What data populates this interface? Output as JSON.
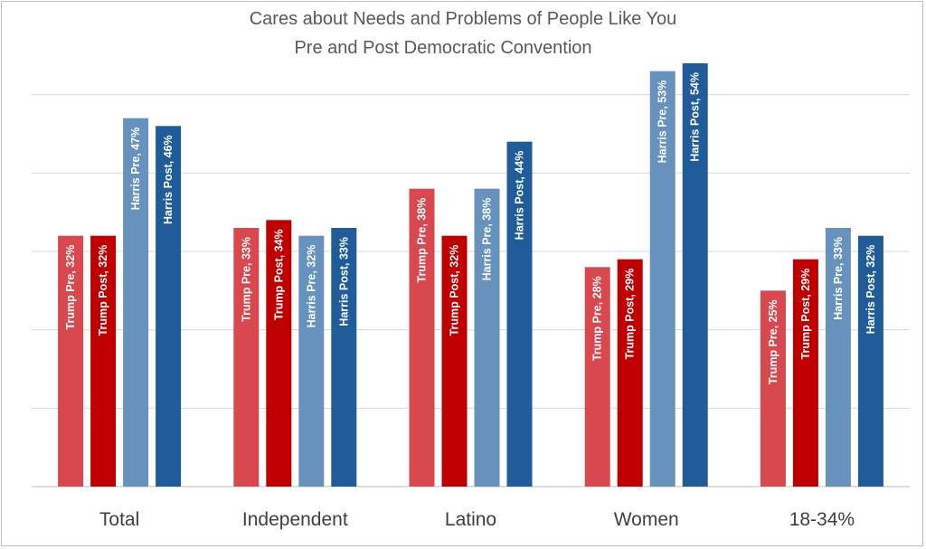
{
  "chart_data": {
    "type": "bar",
    "title": "Cares about Needs and Problems of People Like You",
    "subtitle": "Pre and Post Democratic Convention",
    "xlabel": "",
    "ylabel": "",
    "ylim": [
      0,
      60
    ],
    "grid": true,
    "legend": "none",
    "categories": [
      "Total",
      "Independent",
      "Latino",
      "Women",
      "18-34%"
    ],
    "series": [
      {
        "name": "Trump Pre",
        "color": "#d9474f",
        "values": [
          32,
          33,
          38,
          28,
          25
        ]
      },
      {
        "name": "Trump Post",
        "color": "#c00000",
        "values": [
          32,
          34,
          32,
          29,
          29
        ]
      },
      {
        "name": "Harris Pre",
        "color": "#6792bd",
        "values": [
          47,
          32,
          38,
          53,
          33
        ]
      },
      {
        "name": "Harris Post",
        "color": "#1f5c99",
        "values": [
          46,
          33,
          44,
          54,
          32
        ]
      }
    ],
    "data_labels": [
      [
        "Trump Pre, 32%",
        "Trump Pre, 33%",
        "Trump Pre, 38%",
        "Trump Pre, 28%",
        "Trump Pre, 25%"
      ],
      [
        "Trump Post, 32%",
        "Trump Post, 34%",
        "Trump Post, 32%",
        "Trump Post, 29%",
        "Trump Post, 29%"
      ],
      [
        "Harris Pre, 47%",
        "Harris Pre, 32%",
        "Harris Pre, 38%",
        "Harris Pre, 53%",
        "Harris Pre, 33%"
      ],
      [
        "Harris Post, 46%",
        "Harris Post, 33%",
        "Harris Post, 44%",
        "Harris Post, 54%",
        "Harris Post, 32%"
      ]
    ]
  }
}
